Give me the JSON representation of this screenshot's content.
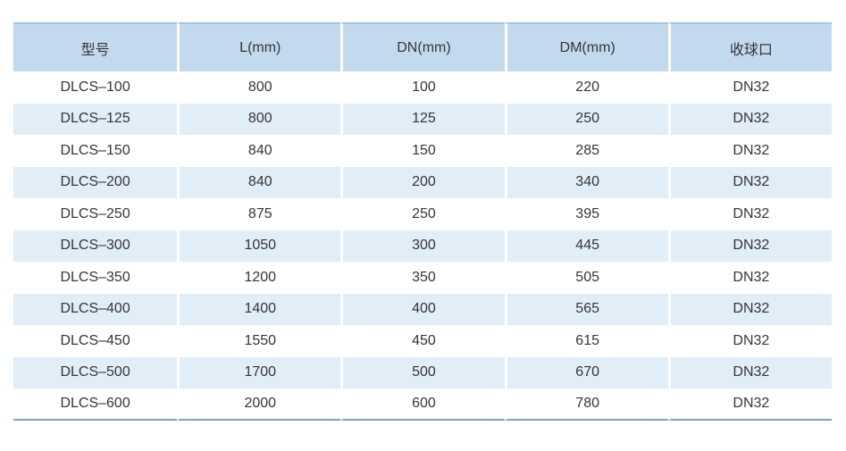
{
  "chart_data": {
    "type": "table",
    "columns": [
      "型号",
      "L(mm)",
      "DN(mm)",
      "DM(mm)",
      "收球口"
    ],
    "rows": [
      [
        "DLCS–100",
        "800",
        "100",
        "220",
        "DN32"
      ],
      [
        "DLCS–125",
        "800",
        "125",
        "250",
        "DN32"
      ],
      [
        "DLCS–150",
        "840",
        "150",
        "285",
        "DN32"
      ],
      [
        "DLCS–200",
        "840",
        "200",
        "340",
        "DN32"
      ],
      [
        "DLCS–250",
        "875",
        "250",
        "395",
        "DN32"
      ],
      [
        "DLCS–300",
        "1050",
        "300",
        "445",
        "DN32"
      ],
      [
        "DLCS–350",
        "1200",
        "350",
        "505",
        "DN32"
      ],
      [
        "DLCS–400",
        "1400",
        "400",
        "565",
        "DN32"
      ],
      [
        "DLCS–450",
        "1550",
        "450",
        "615",
        "DN32"
      ],
      [
        "DLCS–500",
        "1700",
        "500",
        "670",
        "DN32"
      ],
      [
        "DLCS–600",
        "2000",
        "600",
        "780",
        "DN32"
      ]
    ],
    "layout": {
      "striped": true,
      "stripe_pattern": "even rows white, odd rows light blue",
      "column_alignment": "center",
      "gridlines": "white vertical gutters between columns, no horizontal rules between rows"
    }
  },
  "colors": {
    "header-bg": "#c3d9ed",
    "stripe-bg": "#e1edf7",
    "row-bg": "#ffffff",
    "header-top-border": "#a6c4df",
    "table-bottom-border": "#87a3b9",
    "text": "#363636",
    "gap": "#ffffff"
  }
}
